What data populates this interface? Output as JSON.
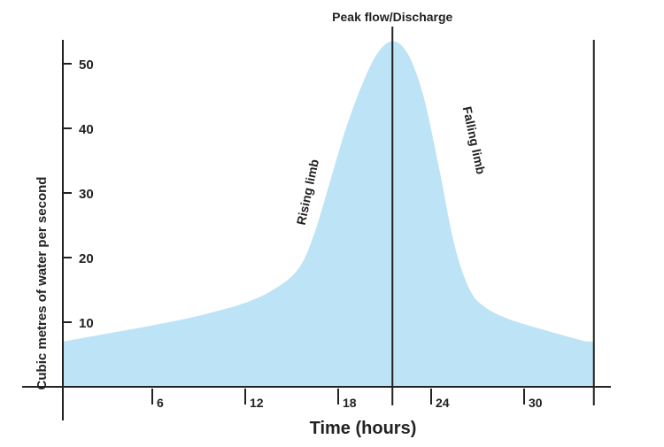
{
  "chart_data": {
    "type": "area",
    "title": "",
    "xlabel": "Time (hours)",
    "ylabel": "Cubic metres of water per second",
    "xlim": [
      0,
      34.5
    ],
    "ylim": [
      0,
      55
    ],
    "xticks": [
      6,
      12,
      18,
      24,
      30
    ],
    "xtick_labels": [
      "6",
      "12",
      "18",
      "24",
      "30"
    ],
    "yticks": [
      10,
      20,
      30,
      40,
      50
    ],
    "ytick_labels": [
      "10",
      "20",
      "30",
      "40",
      "50"
    ],
    "grid": false,
    "series": [
      {
        "name": "Discharge",
        "color": "#bde3f6",
        "x": [
          0,
          3,
          6,
          9,
          12,
          14,
          15.5,
          16.5,
          17.5,
          18.5,
          19.5,
          20.5,
          21.5,
          22.5,
          23.5,
          24.5,
          25.5,
          26.5,
          27.5,
          29,
          31,
          34
        ],
        "y": [
          7,
          8.2,
          9.5,
          11,
          13,
          15.3,
          18.5,
          24,
          32,
          40,
          46.5,
          51.5,
          53.5,
          51.5,
          45,
          34,
          22,
          15,
          12.3,
          10.5,
          9,
          7
        ]
      }
    ],
    "annotations": [
      {
        "text": "Peak flow/Discharge",
        "x": 21.5,
        "type": "vertical-line"
      },
      {
        "text": "Rising limb",
        "x": 16.3,
        "y": 30
      },
      {
        "text": "Falling limb",
        "x": 26.5,
        "y": 38
      }
    ],
    "end_line_x": 34.5
  }
}
